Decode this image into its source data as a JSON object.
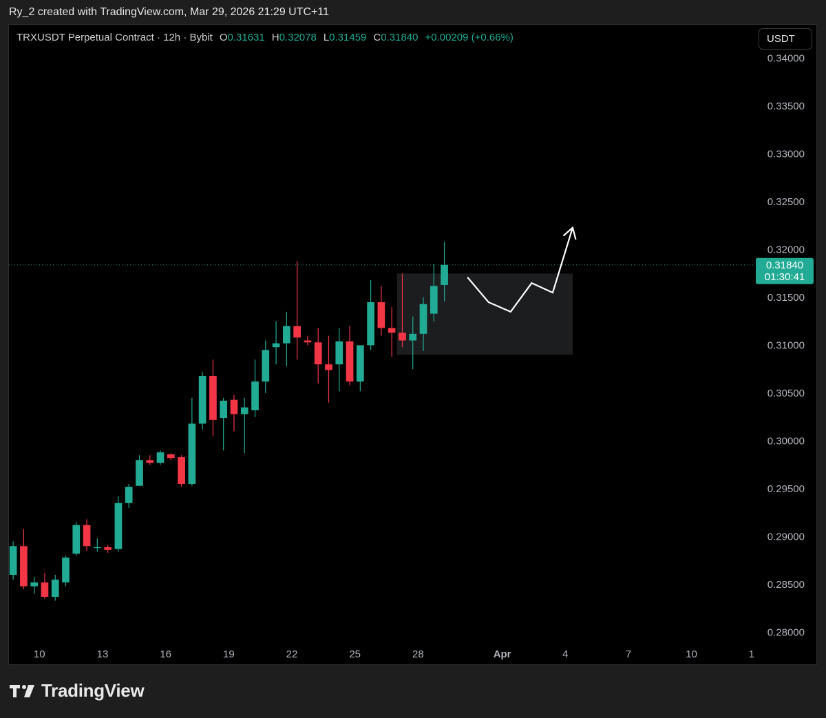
{
  "caption": "Ry_2 created with TradingView.com, Mar 29, 2026 21:29 UTC+11",
  "legend": {
    "symbol": "TRXUSDT Perpetual Contract · 12h · Bybit",
    "o_label": "O",
    "o": "0.31631",
    "h_label": "H",
    "h": "0.32078",
    "l_label": "L",
    "l": "0.31459",
    "c_label": "C",
    "c": "0.31840",
    "change": "+0.00209 (+0.66%)"
  },
  "currency": "USDT",
  "brand": "TradingView",
  "colors": {
    "up": "#22ab94",
    "down": "#f23645",
    "background": "#000000",
    "text": "#b2b5be",
    "box": "#1c1d1f"
  },
  "chart_data": {
    "type": "candlestick",
    "interval": "12h",
    "y_axis": {
      "ticks": [
        "0.34000",
        "0.33500",
        "0.33000",
        "0.32500",
        "0.32000",
        "0.31500",
        "0.31000",
        "0.30500",
        "0.30000",
        "0.29500",
        "0.29000",
        "0.28500",
        "0.28000"
      ],
      "range": [
        0.2765,
        0.3435
      ]
    },
    "x_axis": {
      "ticks": [
        {
          "label": "10",
          "x": 2.5
        },
        {
          "label": "13",
          "x": 8.5
        },
        {
          "label": "16",
          "x": 14.5
        },
        {
          "label": "19",
          "x": 20.5
        },
        {
          "label": "22",
          "x": 26.5
        },
        {
          "label": "25",
          "x": 32.5
        },
        {
          "label": "28",
          "x": 38.5
        },
        {
          "label": "Apr",
          "x": 46.5
        },
        {
          "label": "4",
          "x": 52.5
        },
        {
          "label": "7",
          "x": 58.5
        },
        {
          "label": "10",
          "x": 64.5
        },
        {
          "label": "1",
          "x": 70.2
        }
      ],
      "range": [
        -0.4,
        76.5
      ]
    },
    "last_price": "0.31840",
    "countdown": "01:30:41",
    "candles": [
      {
        "x": 0,
        "o": 0.286,
        "h": 0.2895,
        "l": 0.2855,
        "c": 0.289
      },
      {
        "x": 1,
        "o": 0.289,
        "h": 0.2908,
        "l": 0.2845,
        "c": 0.2848
      },
      {
        "x": 2,
        "o": 0.2848,
        "h": 0.2858,
        "l": 0.284,
        "c": 0.2852
      },
      {
        "x": 3,
        "o": 0.2852,
        "h": 0.2862,
        "l": 0.2835,
        "c": 0.2837
      },
      {
        "x": 4,
        "o": 0.2837,
        "h": 0.286,
        "l": 0.2833,
        "c": 0.2855
      },
      {
        "x": 5,
        "o": 0.2852,
        "h": 0.288,
        "l": 0.2848,
        "c": 0.2878
      },
      {
        "x": 6,
        "o": 0.2882,
        "h": 0.2915,
        "l": 0.288,
        "c": 0.2912
      },
      {
        "x": 7,
        "o": 0.2912,
        "h": 0.2918,
        "l": 0.2885,
        "c": 0.289
      },
      {
        "x": 8,
        "o": 0.2888,
        "h": 0.2898,
        "l": 0.2884,
        "c": 0.2889
      },
      {
        "x": 9,
        "o": 0.2889,
        "h": 0.2891,
        "l": 0.2883,
        "c": 0.2886
      },
      {
        "x": 10,
        "o": 0.2887,
        "h": 0.2942,
        "l": 0.2884,
        "c": 0.2935
      },
      {
        "x": 11,
        "o": 0.2935,
        "h": 0.2955,
        "l": 0.293,
        "c": 0.2952
      },
      {
        "x": 12,
        "o": 0.2953,
        "h": 0.2985,
        "l": 0.2953,
        "c": 0.298
      },
      {
        "x": 13,
        "o": 0.298,
        "h": 0.2985,
        "l": 0.2975,
        "c": 0.2977
      },
      {
        "x": 14,
        "o": 0.2977,
        "h": 0.299,
        "l": 0.2975,
        "c": 0.2988
      },
      {
        "x": 15,
        "o": 0.2986,
        "h": 0.2987,
        "l": 0.298,
        "c": 0.2982
      },
      {
        "x": 16,
        "o": 0.2983,
        "h": 0.2985,
        "l": 0.2952,
        "c": 0.2955
      },
      {
        "x": 17,
        "o": 0.2955,
        "h": 0.3045,
        "l": 0.2953,
        "c": 0.3018
      },
      {
        "x": 18,
        "o": 0.3018,
        "h": 0.3072,
        "l": 0.3012,
        "c": 0.3068
      },
      {
        "x": 19,
        "o": 0.3068,
        "h": 0.3085,
        "l": 0.3005,
        "c": 0.3022
      },
      {
        "x": 20,
        "o": 0.3024,
        "h": 0.3045,
        "l": 0.299,
        "c": 0.3042
      },
      {
        "x": 21,
        "o": 0.3043,
        "h": 0.3048,
        "l": 0.301,
        "c": 0.3028
      },
      {
        "x": 22,
        "o": 0.3028,
        "h": 0.3045,
        "l": 0.2987,
        "c": 0.3035
      },
      {
        "x": 23,
        "o": 0.3032,
        "h": 0.3085,
        "l": 0.3025,
        "c": 0.3062
      },
      {
        "x": 24,
        "o": 0.3062,
        "h": 0.3105,
        "l": 0.305,
        "c": 0.3095
      },
      {
        "x": 25,
        "o": 0.3098,
        "h": 0.3125,
        "l": 0.308,
        "c": 0.3102
      },
      {
        "x": 26,
        "o": 0.3102,
        "h": 0.3135,
        "l": 0.3078,
        "c": 0.312
      },
      {
        "x": 27,
        "o": 0.312,
        "h": 0.3188,
        "l": 0.3085,
        "c": 0.3108
      },
      {
        "x": 28,
        "o": 0.3105,
        "h": 0.311,
        "l": 0.31,
        "c": 0.3103
      },
      {
        "x": 29,
        "o": 0.3103,
        "h": 0.3118,
        "l": 0.306,
        "c": 0.308
      },
      {
        "x": 30,
        "o": 0.308,
        "h": 0.311,
        "l": 0.304,
        "c": 0.3074
      },
      {
        "x": 31,
        "o": 0.308,
        "h": 0.3118,
        "l": 0.3052,
        "c": 0.3104
      },
      {
        "x": 32,
        "o": 0.3104,
        "h": 0.312,
        "l": 0.3058,
        "c": 0.3062
      },
      {
        "x": 33,
        "o": 0.3062,
        "h": 0.3098,
        "l": 0.3052,
        "c": 0.31
      },
      {
        "x": 34,
        "o": 0.31,
        "h": 0.3168,
        "l": 0.3095,
        "c": 0.3145
      },
      {
        "x": 35,
        "o": 0.3145,
        "h": 0.3162,
        "l": 0.311,
        "c": 0.3118
      },
      {
        "x": 36,
        "o": 0.3118,
        "h": 0.314,
        "l": 0.3088,
        "c": 0.3113
      },
      {
        "x": 37,
        "o": 0.3113,
        "h": 0.3175,
        "l": 0.3098,
        "c": 0.3105
      },
      {
        "x": 38,
        "o": 0.3105,
        "h": 0.313,
        "l": 0.3075,
        "c": 0.3112
      },
      {
        "x": 39,
        "o": 0.3112,
        "h": 0.315,
        "l": 0.3094,
        "c": 0.3143
      },
      {
        "x": 40,
        "o": 0.3133,
        "h": 0.3185,
        "l": 0.3125,
        "c": 0.3162
      },
      {
        "x": 41,
        "o": 0.3163,
        "h": 0.3208,
        "l": 0.3146,
        "c": 0.3184
      }
    ],
    "annotations": {
      "box": {
        "x0": 36.5,
        "x1": 53.2,
        "y0": 0.3175,
        "y1": 0.309
      },
      "path": [
        {
          "x": 43.2,
          "y": 0.3171
        },
        {
          "x": 45.2,
          "y": 0.3145
        },
        {
          "x": 47.3,
          "y": 0.3135
        },
        {
          "x": 49.3,
          "y": 0.3165
        },
        {
          "x": 51.3,
          "y": 0.3155
        },
        {
          "x": 53.2,
          "y": 0.3223
        }
      ]
    }
  }
}
